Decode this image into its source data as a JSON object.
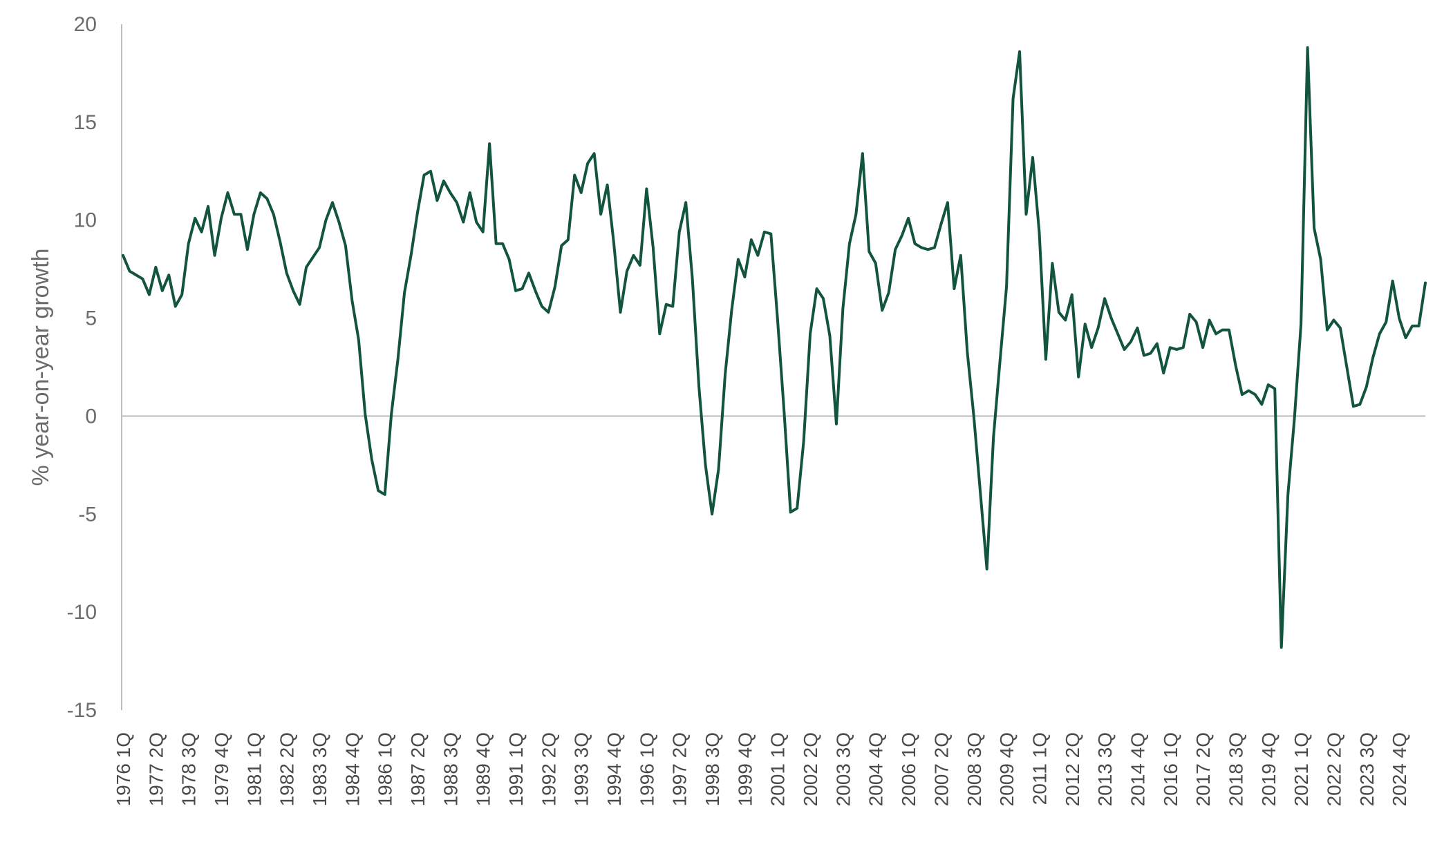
{
  "chart_data": {
    "type": "line",
    "title": "",
    "xlabel": "",
    "ylabel": "% year-on-year growth",
    "ylim": [
      -15,
      20
    ],
    "yticks": [
      20,
      15,
      10,
      5,
      0,
      -5,
      -10,
      -15
    ],
    "ytick_labels": [
      "20",
      "15",
      "10",
      "5",
      "0",
      "-5",
      "-10",
      "-15"
    ],
    "grid": false,
    "legend": "none",
    "x_start": "1976 1Q",
    "x_end": "2025 4Q",
    "x_tick_labels": [
      "1976 1Q",
      "1977 2Q",
      "1978 3Q",
      "1979 4Q",
      "1981 1Q",
      "1982 2Q",
      "1983 3Q",
      "1984 4Q",
      "1986 1Q",
      "1987 2Q",
      "1988 3Q",
      "1989 4Q",
      "1991 1Q",
      "1992 2Q",
      "1993 3Q",
      "1994 4Q",
      "1996 1Q",
      "1997 2Q",
      "1998 3Q",
      "1999 4Q",
      "2001 1Q",
      "2002 2Q",
      "2003 3Q",
      "2004 4Q",
      "2006 1Q",
      "2007 2Q",
      "2008 3Q",
      "2009 4Q",
      "2011 1Q",
      "2012 2Q",
      "2013 3Q",
      "2014 4Q",
      "2016 1Q",
      "2017 2Q",
      "2018 3Q",
      "2019 4Q",
      "2021 1Q",
      "2022 2Q",
      "2023 3Q",
      "2024 4Q"
    ],
    "series": [
      {
        "name": "",
        "color": "#12553c",
        "values": [
          8.2,
          7.4,
          7.2,
          7.0,
          6.2,
          7.6,
          6.4,
          7.2,
          5.6,
          6.2,
          8.8,
          10.1,
          9.4,
          10.7,
          8.2,
          10.1,
          11.4,
          10.3,
          10.3,
          8.5,
          10.3,
          11.4,
          11.1,
          10.3,
          8.9,
          7.3,
          6.4,
          5.7,
          7.6,
          8.1,
          8.6,
          10.0,
          10.9,
          9.9,
          8.7,
          5.9,
          3.9,
          0.1,
          -2.2,
          -3.8,
          -4.0,
          0.1,
          2.9,
          6.3,
          8.2,
          10.4,
          12.3,
          12.5,
          11.0,
          12.0,
          11.4,
          10.9,
          9.9,
          11.4,
          9.9,
          9.4,
          13.9,
          8.8,
          8.8,
          8.0,
          6.4,
          6.5,
          7.3,
          6.4,
          5.6,
          5.3,
          6.6,
          8.7,
          9.0,
          12.3,
          11.4,
          12.9,
          13.4,
          10.3,
          11.8,
          8.8,
          5.3,
          7.4,
          8.2,
          7.7,
          11.6,
          8.6,
          4.2,
          5.7,
          5.6,
          9.4,
          10.9,
          7.0,
          1.5,
          -2.5,
          -5.0,
          -2.7,
          2.1,
          5.4,
          8.0,
          7.1,
          9.0,
          8.2,
          9.4,
          9.3,
          5.0,
          0.3,
          -4.9,
          -4.7,
          -1.3,
          4.2,
          6.5,
          6.0,
          4.1,
          -0.4,
          5.5,
          8.8,
          10.3,
          13.4,
          8.4,
          7.8,
          5.4,
          6.3,
          8.5,
          9.2,
          10.1,
          8.8,
          8.6,
          8.5,
          8.6,
          9.8,
          10.9,
          6.5,
          8.2,
          3.3,
          0.0,
          -3.9,
          -7.8,
          -1.1,
          2.8,
          6.6,
          16.2,
          18.6,
          10.3,
          13.2,
          9.4,
          2.9,
          7.8,
          5.3,
          4.9,
          6.2,
          2.0,
          4.7,
          3.5,
          4.5,
          6.0,
          5.0,
          4.2,
          3.4,
          3.8,
          4.5,
          3.1,
          3.2,
          3.7,
          2.2,
          3.5,
          3.4,
          3.5,
          5.2,
          4.8,
          3.5,
          4.9,
          4.2,
          4.4,
          4.4,
          2.6,
          1.1,
          1.3,
          1.1,
          0.6,
          1.6,
          1.4,
          -11.8,
          -4.0,
          -0.1,
          4.7,
          18.8,
          9.6,
          8.0,
          4.4,
          4.9,
          4.5,
          2.5,
          0.5,
          0.6,
          1.5,
          3.0,
          4.2,
          4.8,
          6.9,
          5.0,
          4.0,
          4.6,
          4.6,
          6.8
        ]
      }
    ]
  }
}
